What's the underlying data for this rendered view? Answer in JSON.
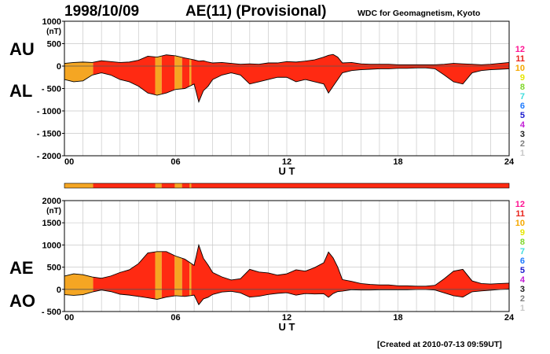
{
  "header": {
    "date": "1998/10/09",
    "title": "AE(11) (Provisional)",
    "institution": "WDC for Geomagnetism, Kyoto"
  },
  "footer": {
    "created": "[Created at 2010-07-13 09:59UT]"
  },
  "panel_labels": {
    "au": "AU",
    "al": "AL",
    "ae": "AE",
    "ao": "AO"
  },
  "axis_unit": "(nT)",
  "x_axis_label": "U T",
  "station_count_legend": {
    "labels": [
      "12",
      "11",
      "10",
      "9",
      "8",
      "7",
      "6",
      "5",
      "4",
      "3",
      "2",
      "1"
    ],
    "colors": [
      "#ff1493",
      "#e8231a",
      "#f5a800",
      "#e6e600",
      "#7fd62a",
      "#3fdcdc",
      "#1e7bff",
      "#1a1acd",
      "#c21ed6",
      "#202020",
      "#7f7f7f",
      "#c8c8c8"
    ]
  },
  "station_count_strip": {
    "default_color": "#ff2a12",
    "segments": [
      {
        "start": 0.0,
        "end": 1.55,
        "color": "#f5a623"
      },
      {
        "start": 4.9,
        "end": 5.25,
        "color": "#f5a623"
      },
      {
        "start": 5.95,
        "end": 6.35,
        "color": "#f5a623"
      },
      {
        "start": 6.75,
        "end": 6.85,
        "color": "#f5a623"
      }
    ]
  },
  "chart_data": [
    {
      "type": "area",
      "title": "AU / AL",
      "xlabel": "U T",
      "ylabel": "(nT)",
      "xlim": [
        0,
        24
      ],
      "ylim": [
        -2000,
        1000
      ],
      "x_ticks": [
        "00",
        "06",
        "12",
        "18",
        "24"
      ],
      "y_ticks": [
        "1000",
        "500",
        "0",
        "- 500",
        "- 1000",
        "- 1500",
        "- 2000"
      ],
      "grid": true,
      "x": [
        0,
        0.5,
        1,
        1.5,
        2,
        2.5,
        3,
        3.5,
        4,
        4.5,
        5,
        5.5,
        6,
        6.5,
        7,
        7.25,
        7.5,
        7.75,
        8,
        8.5,
        9,
        9.5,
        10,
        10.5,
        11,
        11.5,
        12,
        12.5,
        13,
        13.5,
        14,
        14.25,
        14.5,
        14.75,
        15,
        15.5,
        16,
        16.5,
        17,
        17.5,
        18,
        18.5,
        19,
        19.5,
        20,
        20.5,
        21,
        21.5,
        22,
        22.5,
        23,
        23.5,
        24
      ],
      "series": [
        {
          "name": "AU",
          "values": [
            60,
            80,
            90,
            80,
            120,
            100,
            80,
            90,
            130,
            220,
            200,
            250,
            230,
            180,
            140,
            110,
            120,
            90,
            70,
            80,
            60,
            40,
            50,
            40,
            70,
            70,
            100,
            90,
            110,
            140,
            200,
            240,
            260,
            200,
            70,
            80,
            50,
            40,
            40,
            40,
            30,
            30,
            30,
            30,
            30,
            40,
            60,
            50,
            40,
            30,
            40,
            60,
            80
          ]
        },
        {
          "name": "AL",
          "values": [
            -300,
            -350,
            -330,
            -200,
            -150,
            -200,
            -300,
            -350,
            -450,
            -600,
            -650,
            -600,
            -520,
            -500,
            -400,
            -800,
            -550,
            -450,
            -300,
            -200,
            -150,
            -200,
            -400,
            -350,
            -300,
            -250,
            -250,
            -350,
            -300,
            -350,
            -400,
            -600,
            -450,
            -300,
            -150,
            -100,
            -80,
            -70,
            -60,
            -60,
            -50,
            -50,
            -40,
            -40,
            -60,
            -200,
            -350,
            -400,
            -150,
            -100,
            -80,
            -70,
            -60
          ]
        }
      ]
    },
    {
      "type": "area",
      "title": "AE / AO",
      "xlabel": "U T",
      "ylabel": "(nT)",
      "xlim": [
        0,
        24
      ],
      "ylim": [
        -500,
        2000
      ],
      "x_ticks": [
        "00",
        "06",
        "12",
        "18",
        "24"
      ],
      "y_ticks": [
        "2000",
        "1500",
        "1000",
        "500",
        "0",
        "- 500"
      ],
      "grid": true,
      "x": [
        0,
        0.5,
        1,
        1.5,
        2,
        2.5,
        3,
        3.5,
        4,
        4.5,
        5,
        5.5,
        6,
        6.5,
        7,
        7.25,
        7.5,
        7.75,
        8,
        8.5,
        9,
        9.5,
        10,
        10.5,
        11,
        11.5,
        12,
        12.5,
        13,
        13.5,
        14,
        14.25,
        14.5,
        14.75,
        15,
        15.5,
        16,
        16.5,
        17,
        17.5,
        18,
        18.5,
        19,
        19.5,
        20,
        20.5,
        21,
        21.5,
        22,
        22.5,
        23,
        23.5,
        24
      ],
      "series": [
        {
          "name": "AE",
          "values": [
            300,
            350,
            330,
            280,
            250,
            300,
            380,
            440,
            580,
            820,
            850,
            850,
            750,
            680,
            540,
            1000,
            700,
            550,
            380,
            280,
            210,
            240,
            450,
            390,
            370,
            320,
            350,
            440,
            410,
            490,
            600,
            840,
            710,
            500,
            220,
            180,
            130,
            110,
            100,
            100,
            80,
            80,
            70,
            70,
            90,
            240,
            410,
            450,
            190,
            130,
            120,
            130,
            140
          ]
        },
        {
          "name": "AO",
          "values": [
            -120,
            -135,
            -120,
            -60,
            -15,
            -50,
            -110,
            -130,
            -160,
            -190,
            -225,
            -175,
            -145,
            -160,
            -130,
            -345,
            -215,
            -180,
            -115,
            -60,
            -45,
            -80,
            -175,
            -155,
            -115,
            -90,
            -75,
            -130,
            -95,
            -105,
            -100,
            -180,
            -95,
            -50,
            -40,
            -10,
            -15,
            -15,
            -10,
            -10,
            -10,
            -10,
            -5,
            -5,
            -15,
            -80,
            -145,
            -175,
            -55,
            -35,
            -20,
            -5,
            10
          ]
        }
      ]
    }
  ]
}
